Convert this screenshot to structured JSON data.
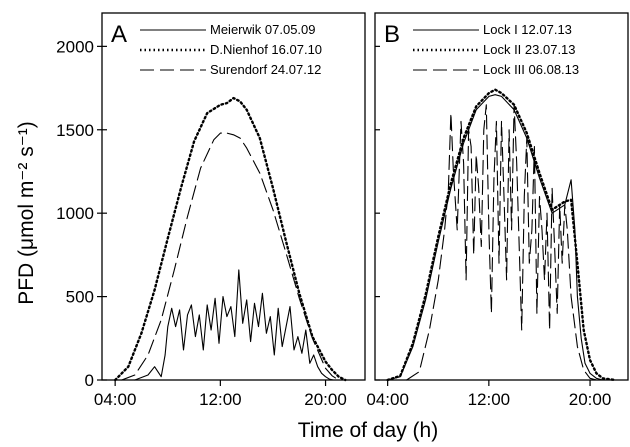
{
  "chart_data": {
    "type": "line",
    "xlabel": "Time of day (h)",
    "ylabel": "PFD (μmol m⁻² s⁻¹)",
    "x_unit": "hours",
    "ylim": [
      0,
      2200
    ],
    "y_ticks": [
      0,
      500,
      1000,
      1500,
      2000
    ],
    "panels": [
      {
        "label": "A",
        "xlim": [
          3,
          23
        ],
        "x_ticks": [
          {
            "value": 4,
            "label": "04:00"
          },
          {
            "value": 12,
            "label": "12:00"
          },
          {
            "value": 20,
            "label": "20:00"
          }
        ],
        "legend_position": "top-right",
        "series": [
          {
            "name": "Meierwik 07.05.09",
            "style": "solid",
            "x": [
              5.5,
              6.5,
              7.0,
              7.5,
              7.8,
              8.0,
              8.3,
              8.6,
              8.9,
              9.2,
              9.5,
              9.8,
              10.1,
              10.4,
              10.7,
              11.0,
              11.3,
              11.6,
              11.9,
              12.2,
              12.5,
              12.8,
              13.1,
              13.4,
              13.7,
              14.0,
              14.3,
              14.6,
              14.9,
              15.2,
              15.5,
              15.8,
              16.1,
              16.4,
              16.7,
              17.0,
              17.3,
              17.6,
              17.9,
              18.2,
              18.5,
              18.8,
              19.1,
              19.4,
              19.7,
              20.0,
              20.3,
              20.6
            ],
            "y": [
              0,
              30,
              80,
              20,
              150,
              320,
              430,
              320,
              420,
              180,
              390,
              450,
              260,
              390,
              180,
              450,
              300,
              490,
              220,
              500,
              380,
              440,
              260,
              660,
              340,
              480,
              230,
              460,
              320,
              520,
              280,
              380,
              150,
              430,
              200,
              320,
              440,
              180,
              260,
              160,
              300,
              100,
              150,
              80,
              40,
              20,
              5,
              0
            ]
          },
          {
            "name": "D.Nienhof 16.07.10",
            "style": "dotted",
            "x": [
              4.0,
              5.0,
              6.0,
              7.0,
              8.0,
              9.0,
              10.0,
              11.0,
              12.0,
              12.5,
              13.0,
              13.5,
              14.0,
              15.0,
              16.0,
              17.0,
              18.0,
              19.0,
              20.0,
              20.5,
              21.0,
              21.5
            ],
            "y": [
              0,
              80,
              280,
              540,
              850,
              1150,
              1430,
              1600,
              1650,
              1660,
              1690,
              1670,
              1620,
              1450,
              1150,
              830,
              520,
              260,
              110,
              60,
              20,
              0
            ]
          },
          {
            "name": "Surendorf 24.07.12",
            "style": "dashed",
            "x": [
              4.5,
              5.5,
              6.5,
              7.5,
              8.5,
              9.5,
              10.5,
              11.5,
              12.0,
              12.5,
              13.0,
              13.5,
              14.0,
              15.0,
              16.0,
              17.0,
              18.0,
              19.0,
              20.0,
              20.5,
              21.0
            ],
            "y": [
              0,
              30,
              150,
              360,
              660,
              980,
              1270,
              1440,
              1480,
              1480,
              1470,
              1450,
              1390,
              1240,
              1020,
              760,
              490,
              250,
              70,
              25,
              0
            ]
          }
        ]
      },
      {
        "label": "B",
        "xlim": [
          3,
          23
        ],
        "x_ticks": [
          {
            "value": 4,
            "label": "04:00"
          },
          {
            "value": 12,
            "label": "12:00"
          },
          {
            "value": 20,
            "label": "20:00"
          }
        ],
        "legend_position": "top-right",
        "series": [
          {
            "name": "Lock I 12.07.13",
            "style": "solid",
            "x": [
              4.0,
              5.0,
              6.0,
              7.0,
              8.0,
              9.0,
              10.0,
              11.0,
              12.0,
              12.5,
              13.0,
              14.0,
              15.0,
              16.0,
              17.0,
              18.0,
              18.5,
              18.8,
              19.0,
              19.3,
              19.6,
              20.0,
              20.5,
              21.0,
              22.0
            ],
            "y": [
              0,
              20,
              200,
              480,
              830,
              1150,
              1420,
              1620,
              1700,
              1710,
              1700,
              1620,
              1450,
              1210,
              1000,
              1050,
              1200,
              900,
              500,
              250,
              100,
              40,
              10,
              0,
              0
            ]
          },
          {
            "name": "Lock II 23.07.13",
            "style": "dotted",
            "x": [
              4.0,
              5.0,
              6.0,
              7.0,
              8.0,
              9.0,
              10.0,
              11.0,
              12.0,
              12.5,
              13.0,
              14.0,
              15.0,
              16.0,
              17.0,
              18.0,
              18.5,
              19.0,
              19.5,
              20.0,
              20.5,
              21.0,
              22.0
            ],
            "y": [
              0,
              25,
              220,
              510,
              860,
              1180,
              1450,
              1640,
              1720,
              1740,
              1720,
              1650,
              1480,
              1240,
              1020,
              1070,
              1080,
              700,
              300,
              120,
              40,
              10,
              0
            ]
          },
          {
            "name": "Lock III 06.08.13",
            "style": "dashed",
            "x": [
              5.5,
              6.5,
              7.3,
              8.0,
              8.5,
              8.8,
              9.0,
              9.2,
              9.5,
              9.8,
              10.0,
              10.2,
              10.4,
              10.6,
              10.8,
              11.0,
              11.2,
              11.4,
              11.6,
              11.8,
              12.0,
              12.2,
              12.4,
              12.6,
              12.8,
              13.0,
              13.2,
              13.4,
              13.6,
              13.8,
              14.0,
              14.2,
              14.4,
              14.6,
              14.8,
              15.0,
              15.2,
              15.4,
              15.6,
              15.8,
              16.0,
              16.2,
              16.4,
              16.6,
              16.8,
              17.0,
              17.2,
              17.4,
              17.6,
              17.8,
              18.0,
              18.2,
              18.5,
              19.0,
              19.5,
              20.0,
              20.5
            ],
            "y": [
              0,
              50,
              300,
              600,
              900,
              1150,
              1600,
              1250,
              900,
              1550,
              1300,
              600,
              1500,
              1400,
              750,
              1350,
              1150,
              800,
              1500,
              1650,
              900,
              400,
              1200,
              1550,
              700,
              1550,
              1100,
              600,
              1500,
              900,
              1650,
              1300,
              800,
              300,
              1100,
              1450,
              700,
              900,
              1400,
              400,
              1100,
              900,
              600,
              1000,
              300,
              1150,
              800,
              400,
              1050,
              700,
              1050,
              900,
              500,
              200,
              60,
              10,
              0
            ]
          }
        ]
      }
    ]
  }
}
